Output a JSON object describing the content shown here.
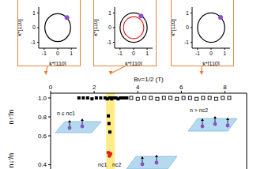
{
  "chart_data": [
    {
      "type": "scatter",
      "xlabel": "k*[110]",
      "ylabel": "k*[110]",
      "xlim": [
        -1.4,
        1.4
      ],
      "ylim": [
        -1.4,
        1.4
      ],
      "xticks": [
        -1,
        0,
        1
      ],
      "yticks": [
        -1,
        0,
        1
      ],
      "circles": [
        {
          "x": 0,
          "y": 0,
          "r": 0.95,
          "color": "#000000"
        }
      ],
      "series": [
        {
          "color": "#8b4fc8",
          "marker": "circle",
          "x": [
            0.68
          ],
          "values": [
            0.68
          ]
        }
      ]
    },
    {
      "type": "scatter",
      "xlabel": "k*[110]",
      "ylabel": "k*[110]",
      "xlim": [
        -1.4,
        1.4
      ],
      "ylim": [
        -1.4,
        1.4
      ],
      "xticks": [
        -1,
        0,
        1
      ],
      "yticks": [
        -1,
        0,
        1
      ],
      "circles": [
        {
          "x": 0,
          "y": 0,
          "r": 1,
          "color": "#000000"
        },
        {
          "x": 0,
          "y": 0,
          "r": 0.75,
          "color": "#e02020"
        }
      ],
      "series": [
        {
          "color": "#8b4fc8",
          "marker": "circle",
          "x": [
            0.55
          ],
          "values": [
            0.8
          ]
        }
      ]
    },
    {
      "type": "scatter",
      "xlabel": "k*[110]",
      "ylabel": "k*[110]",
      "xlim": [
        -1.4,
        1.4
      ],
      "ylim": [
        -1.4,
        1.4
      ],
      "xticks": [
        -1,
        0,
        1
      ],
      "yticks": [
        -1,
        0,
        1
      ],
      "circles": [
        {
          "x": 0,
          "y": 0,
          "r": 1,
          "color": "#000000"
        }
      ],
      "series": [
        {
          "color": "#8b4fc8",
          "marker": "circle",
          "x": [
            0.7
          ],
          "values": [
            0.7
          ]
        }
      ]
    },
    {
      "type": "scatter",
      "xlabel": "Bν=1/2 (T)",
      "ylabel": "n↑'/n",
      "xlim": [
        0,
        9
      ],
      "ylim": [
        0.55,
        1.05
      ],
      "xticks": [
        0,
        2,
        4,
        6,
        8
      ],
      "yticks": [
        {
          "value": 0.6,
          "label": "0.6"
        },
        {
          "value": 0.8,
          "label": "0.8"
        },
        {
          "value": 1,
          "label": "1.0"
        }
      ],
      "highlight": [
        2.55,
        2.95
      ],
      "annotations": [
        "n ≤ nc1",
        "n > nc2"
      ],
      "series": [
        {
          "color": "#000000",
          "marker": "square",
          "x": [
            1.3,
            1.5,
            1.7,
            1.9,
            2.1,
            2.3,
            2.5,
            2.6,
            2.7,
            2.75,
            2.8,
            2.85,
            2.9,
            3.0,
            3.1,
            3.2,
            3.3,
            3.4,
            3.5,
            2.65,
            2.68,
            2.72
          ],
          "values": [
            1.0,
            1.0,
            1.0,
            0.99,
            1.0,
            1.0,
            1.0,
            0.99,
            1.0,
            1.0,
            0.99,
            1.0,
            1.0,
            1.0,
            0.99,
            1.0,
            1.0,
            1.0,
            1.0,
            0.81,
            0.73,
            0.64
          ]
        },
        {
          "color": "#000000",
          "marker": "open_square",
          "x": [
            3.7,
            4.0,
            4.3,
            4.6,
            4.9,
            5.2,
            5.5,
            5.8,
            6.1,
            6.4,
            6.7,
            7.0,
            7.3,
            7.6,
            7.9,
            8.2
          ],
          "values": [
            1.0,
            0.99,
            1.0,
            1.0,
            0.99,
            1.0,
            1.0,
            0.99,
            1.0,
            1.0,
            0.99,
            1.0,
            1.0,
            0.99,
            1.0,
            1.0
          ]
        }
      ]
    },
    {
      "type": "scatter",
      "ylabel": "n↓'/n",
      "xlim": [
        0,
        9
      ],
      "ylim": [
        0.26,
        0.62
      ],
      "yticks": [
        {
          "value": 0.4,
          "label": "0.4"
        }
      ],
      "tick_labels": "y",
      "highlight": [
        2.55,
        2.95
      ],
      "annotations": [
        "nc1",
        "nc2"
      ],
      "series": [
        {
          "color": "#e02020",
          "marker": "circle",
          "x": [
            2.65,
            2.7,
            2.75
          ],
          "values": [
            0.51,
            0.48,
            0.5
          ]
        }
      ]
    }
  ]
}
